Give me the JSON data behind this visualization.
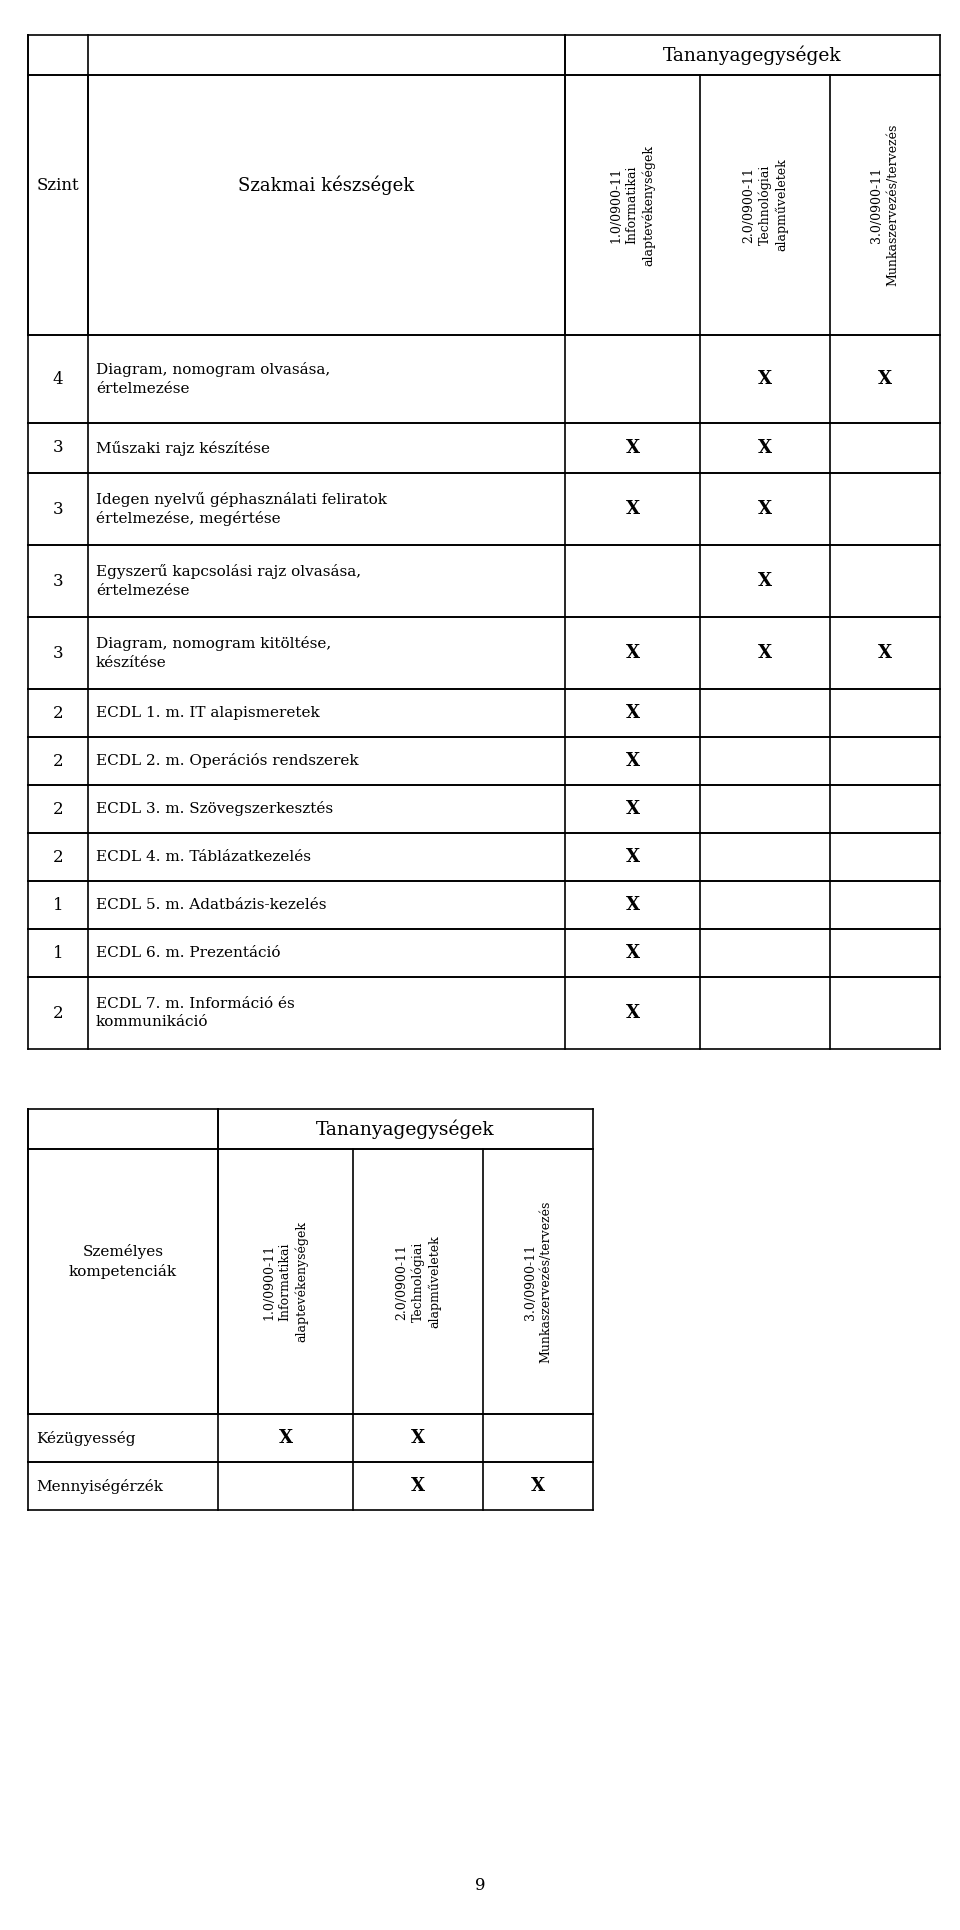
{
  "table1": {
    "header_group": "Tananyagegységek",
    "col_headers": [
      "1.0/0900-11\nInformatikai\nalaptevékenységek",
      "2.0/0900-11\nTechnológiai\nalapműveletek",
      "3.0/0900-11\nMunkaszervezés/tervezés"
    ],
    "left_col1_header": "Szint",
    "left_col2_header": "Szakmai készségek",
    "rows": [
      {
        "szint": "4",
        "skill": "Diagram, nomogram olvasása,\nértelmezése",
        "marks": [
          false,
          true,
          true
        ]
      },
      {
        "szint": "3",
        "skill": "Műszaki rajz készítése",
        "marks": [
          true,
          true,
          false
        ]
      },
      {
        "szint": "3",
        "skill": "Idegen nyelvű géphasználati feliratok\nértelmezése, megértése",
        "marks": [
          true,
          true,
          false
        ]
      },
      {
        "szint": "3",
        "skill": "Egyszerű kapcsolási rajz olvasása,\nértelmezése",
        "marks": [
          false,
          true,
          false
        ]
      },
      {
        "szint": "3",
        "skill": "Diagram, nomogram kitöltése,\nkészítése",
        "marks": [
          true,
          true,
          true
        ]
      },
      {
        "szint": "2",
        "skill": "ECDL 1. m. IT alapismeretek",
        "marks": [
          true,
          false,
          false
        ]
      },
      {
        "szint": "2",
        "skill": "ECDL 2. m. Operációs rendszerek",
        "marks": [
          true,
          false,
          false
        ]
      },
      {
        "szint": "2",
        "skill": "ECDL 3. m. Szövegszerkesztés",
        "marks": [
          true,
          false,
          false
        ]
      },
      {
        "szint": "2",
        "skill": "ECDL 4. m. Táblázatkezelés",
        "marks": [
          true,
          false,
          false
        ]
      },
      {
        "szint": "1",
        "skill": "ECDL 5. m. Adatbázis-kezelés",
        "marks": [
          true,
          false,
          false
        ]
      },
      {
        "szint": "1",
        "skill": "ECDL 6. m. Prezentáció",
        "marks": [
          true,
          false,
          false
        ]
      },
      {
        "szint": "2",
        "skill": "ECDL 7. m. Információ és\nkommunikáció",
        "marks": [
          true,
          false,
          false
        ]
      }
    ]
  },
  "table2": {
    "header_group": "Tananyagegységek",
    "col_headers": [
      "1.0/0900-11\nInformatikai\nalaptevékenységek",
      "2.0/0900-11\nTechnológiai\nalapműveletek",
      "3.0/0900-11\nMunkaszervezés/tervezés"
    ],
    "left_col_header": "Személyes\nkompetenciák",
    "rows": [
      {
        "skill": "Kézügyesség",
        "marks": [
          true,
          true,
          false
        ]
      },
      {
        "skill": "Mennyiségérzék",
        "marks": [
          false,
          true,
          true
        ]
      }
    ]
  },
  "page_number": "9",
  "bg_color": "#ffffff",
  "text_color": "#000000",
  "line_color": "#000000"
}
